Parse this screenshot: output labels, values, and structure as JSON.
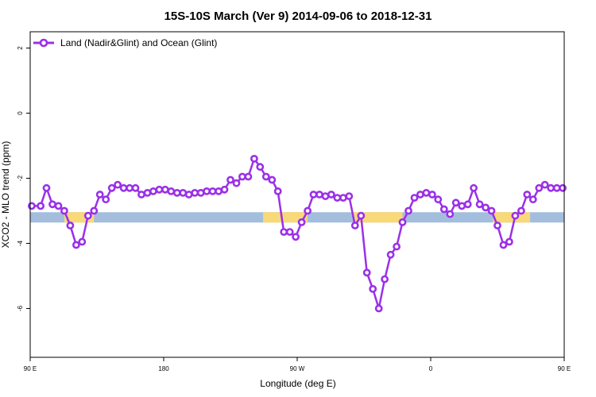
{
  "chart_data": {
    "type": "line",
    "title": "15S-10S March (Ver 9)   2014-09-06 to 2018-12-31",
    "xlabel": "Longitude (deg E)",
    "ylabel": "XCO2 - MLO trend (ppm)",
    "xlim": [
      90,
      450
    ],
    "ylim": [
      -7.5,
      2.5
    ],
    "x_ticks": [
      {
        "value": 90,
        "label": "90 E"
      },
      {
        "value": 180,
        "label": "180"
      },
      {
        "value": 270,
        "label": "90 W"
      },
      {
        "value": 360,
        "label": "0"
      },
      {
        "value": 450,
        "label": "90 E"
      },
      {
        "value": 540,
        "label": "180"
      }
    ],
    "y_ticks": [
      {
        "value": 2,
        "label": "2"
      },
      {
        "value": 0,
        "label": "0"
      },
      {
        "value": -2,
        "label": "-2"
      },
      {
        "value": -4,
        "label": "-4"
      },
      {
        "value": -6,
        "label": "-6"
      }
    ],
    "legend": {
      "position": "top-left"
    },
    "series": [
      {
        "name": "Land (Nadir&Glint) and Ocean (Glint)",
        "color": "#9b30e8",
        "points": [
          [
            91,
            -2.85
          ],
          [
            97,
            -2.85
          ],
          [
            101,
            -2.3
          ],
          [
            105,
            -2.8
          ],
          [
            109,
            -2.85
          ],
          [
            113,
            -3.0
          ],
          [
            117,
            -3.45
          ],
          [
            121,
            -4.05
          ],
          [
            125,
            -3.95
          ],
          [
            129,
            -3.15
          ],
          [
            133,
            -3.0
          ],
          [
            137,
            -2.5
          ],
          [
            141,
            -2.65
          ],
          [
            145,
            -2.3
          ],
          [
            149,
            -2.2
          ],
          [
            153,
            -2.3
          ],
          [
            157,
            -2.3
          ],
          [
            161,
            -2.3
          ],
          [
            165,
            -2.5
          ],
          [
            169,
            -2.45
          ],
          [
            173,
            -2.4
          ],
          [
            177,
            -2.35
          ],
          [
            181,
            -2.35
          ],
          [
            185,
            -2.4
          ],
          [
            189,
            -2.45
          ],
          [
            193,
            -2.45
          ],
          [
            197,
            -2.5
          ],
          [
            201,
            -2.45
          ],
          [
            205,
            -2.45
          ],
          [
            209,
            -2.4
          ],
          [
            213,
            -2.4
          ],
          [
            217,
            -2.4
          ],
          [
            221,
            -2.35
          ],
          [
            225,
            -2.05
          ],
          [
            229,
            -2.15
          ],
          [
            233,
            -1.95
          ],
          [
            237,
            -1.95
          ],
          [
            241,
            -1.4
          ],
          [
            245,
            -1.65
          ],
          [
            249,
            -1.95
          ],
          [
            253,
            -2.05
          ],
          [
            257,
            -2.4
          ],
          [
            261,
            -3.65
          ],
          [
            265,
            -3.65
          ],
          [
            269,
            -3.8
          ],
          [
            273,
            -3.35
          ],
          [
            277,
            -3.0
          ],
          [
            281,
            -2.5
          ],
          [
            285,
            -2.5
          ],
          [
            289,
            -2.55
          ],
          [
            293,
            -2.5
          ],
          [
            297,
            -2.6
          ],
          [
            301,
            -2.6
          ],
          [
            305,
            -2.55
          ],
          [
            309,
            -3.45
          ],
          [
            313,
            -3.15
          ],
          [
            317,
            -4.9
          ],
          [
            321,
            -5.4
          ],
          [
            325,
            -6.0
          ],
          [
            329,
            -5.1
          ],
          [
            333,
            -4.35
          ],
          [
            337,
            -4.1
          ],
          [
            341,
            -3.35
          ],
          [
            345,
            -3.0
          ],
          [
            349,
            -2.6
          ],
          [
            353,
            -2.5
          ],
          [
            357,
            -2.45
          ],
          [
            361,
            -2.5
          ],
          [
            365,
            -2.65
          ],
          [
            369,
            -2.95
          ],
          [
            373,
            -3.1
          ],
          [
            377,
            -2.75
          ],
          [
            381,
            -2.85
          ],
          [
            385,
            -2.8
          ],
          [
            389,
            -2.3
          ],
          [
            393,
            -2.8
          ],
          [
            397,
            -2.9
          ],
          [
            401,
            -3.0
          ],
          [
            405,
            -3.45
          ],
          [
            409,
            -4.05
          ],
          [
            413,
            -3.95
          ],
          [
            417,
            -3.15
          ],
          [
            421,
            -3.0
          ],
          [
            425,
            -2.5
          ],
          [
            429,
            -2.65
          ],
          [
            433,
            -2.3
          ],
          [
            437,
            -2.2
          ],
          [
            441,
            -2.3
          ],
          [
            445,
            -2.3
          ],
          [
            449,
            -2.3
          ]
        ]
      }
    ],
    "surface_band": {
      "y": -3.2,
      "ocean_color": "#a3bedd",
      "land_color": "#f9d878",
      "land_ranges": [
        [
          113,
          133
        ],
        [
          247,
          277
        ],
        [
          308,
          341
        ],
        [
          402,
          427
        ]
      ]
    }
  }
}
